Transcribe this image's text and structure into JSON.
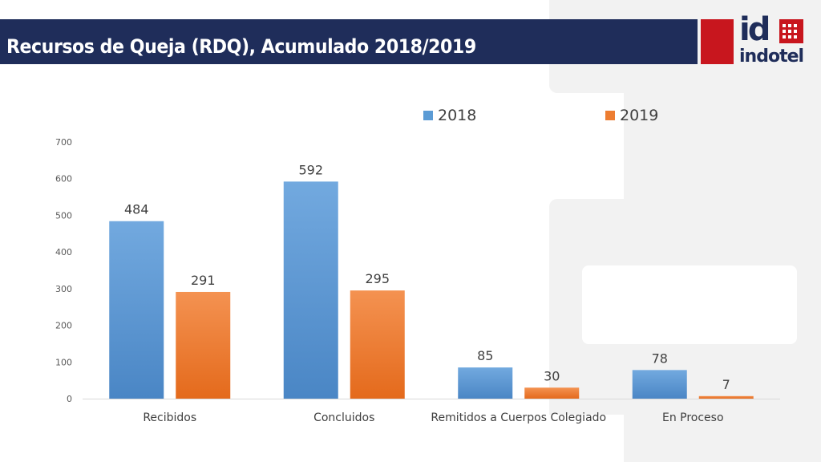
{
  "header": {
    "title": "Recursos de Queja (RDQ), Acumulado 2018/2019",
    "logo_mark": "id",
    "logo_name": "indotel"
  },
  "colors": {
    "series_2018": "#5b9bd5",
    "series_2019": "#ed7d31",
    "header_bg": "#1f2d5a",
    "accent_red": "#c8161e"
  },
  "chart_data": {
    "type": "bar",
    "title": "",
    "xlabel": "",
    "ylabel": "",
    "categories": [
      "Recibidos",
      "Concluidos",
      "Remitidos a Cuerpos Colegiado",
      "En Proceso"
    ],
    "series": [
      {
        "name": "2018",
        "values": [
          484,
          592,
          85,
          78
        ]
      },
      {
        "name": "2019",
        "values": [
          291,
          295,
          30,
          7
        ]
      }
    ],
    "ylim": [
      0,
      700
    ],
    "yticks": [
      0,
      100,
      200,
      300,
      400,
      500,
      600,
      700
    ],
    "legend": "top",
    "grid": false,
    "data_labels": true
  }
}
